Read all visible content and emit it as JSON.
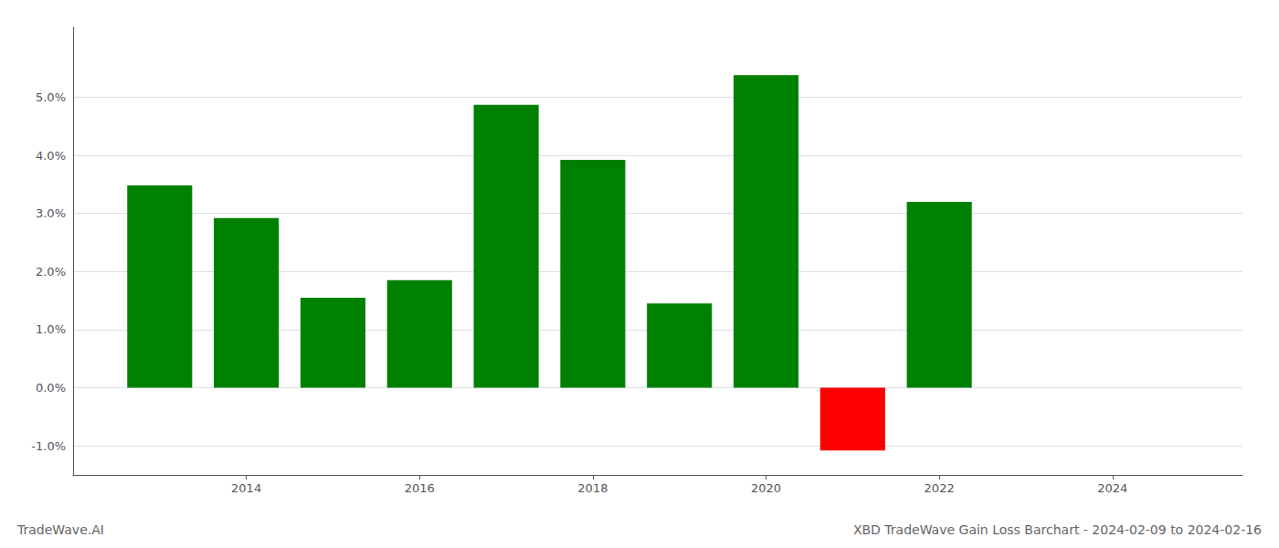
{
  "chart_data": {
    "type": "bar",
    "title": "XBD TradeWave Gain Loss Barchart - 2024-02-09 to 2024-02-16",
    "annotations": [
      "TradeWave.AI"
    ],
    "x": [
      2013,
      2014,
      2015,
      2016,
      2017,
      2018,
      2019,
      2020,
      2021,
      2022
    ],
    "values": [
      3.48,
      2.92,
      1.55,
      1.85,
      4.87,
      3.92,
      1.45,
      5.38,
      -1.08,
      3.2
    ],
    "colors": [
      "#008000",
      "#008000",
      "#008000",
      "#008000",
      "#008000",
      "#008000",
      "#008000",
      "#008000",
      "#ff0000",
      "#008000"
    ],
    "xlim": [
      2012.0,
      2025.5
    ],
    "xticks": [
      2014,
      2016,
      2018,
      2020,
      2022,
      2024
    ],
    "ylim": [
      -1.5,
      6.2
    ],
    "yticks": [
      {
        "value": -1.0,
        "label": "-1.0%"
      },
      {
        "value": 0.0,
        "label": "0.0%"
      },
      {
        "value": 1.0,
        "label": "1.0%"
      },
      {
        "value": 2.0,
        "label": "2.0%"
      },
      {
        "value": 3.0,
        "label": "3.0%"
      },
      {
        "value": 4.0,
        "label": "4.0%"
      },
      {
        "value": 5.0,
        "label": "5.0%"
      }
    ],
    "grid": true
  }
}
